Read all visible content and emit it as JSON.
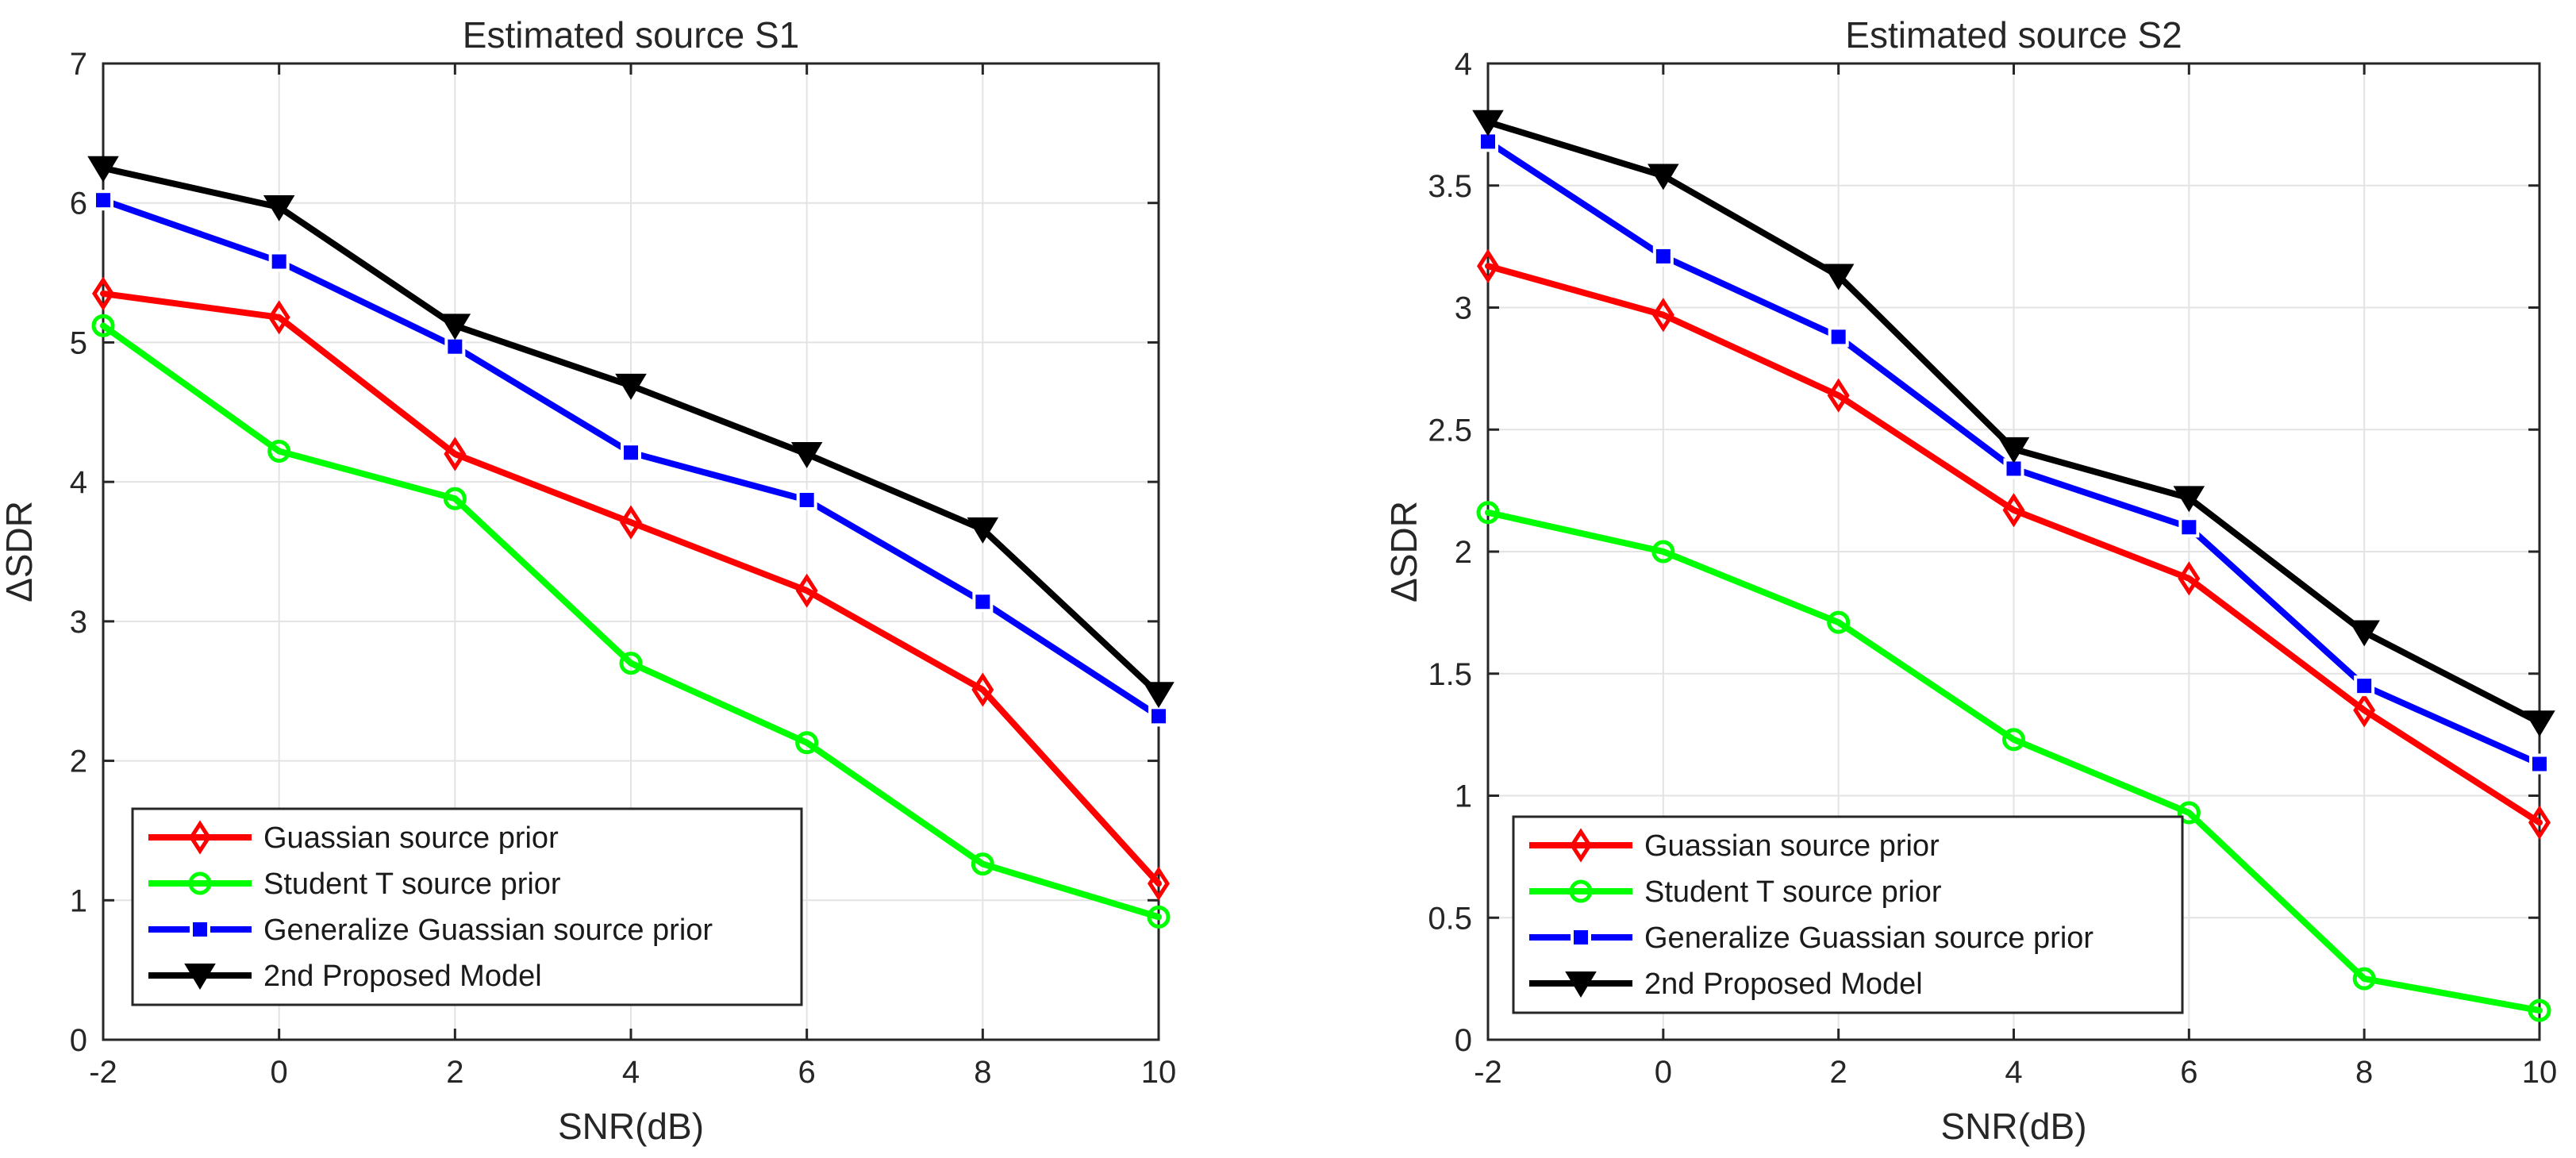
{
  "chart_data": [
    {
      "type": "line",
      "title": "Estimated source S1",
      "xlabel": "SNR(dB)",
      "ylabel": "ΔSDR",
      "x": [
        -2,
        0,
        2,
        4,
        6,
        8,
        10
      ],
      "xlim": [
        -2,
        10
      ],
      "ylim": [
        0,
        7
      ],
      "xticks": [
        -2,
        0,
        2,
        4,
        6,
        8,
        10
      ],
      "yticks": [
        0,
        1,
        2,
        3,
        4,
        5,
        6,
        7
      ],
      "grid": true,
      "legend_position": "bottom-left",
      "series": [
        {
          "name": "Guassian source prior",
          "color": "#ff0000",
          "marker": "diamond",
          "values": [
            5.35,
            5.18,
            4.2,
            3.71,
            3.22,
            2.51,
            1.12
          ]
        },
        {
          "name": "Student T source prior",
          "color": "#00ff00",
          "marker": "circle",
          "values": [
            5.12,
            4.22,
            3.88,
            2.7,
            2.13,
            1.26,
            0.88
          ]
        },
        {
          "name": "Generalize Guassian source prior",
          "color": "#0000ff",
          "marker": "square",
          "values": [
            6.02,
            5.58,
            4.97,
            4.21,
            3.87,
            3.14,
            2.32
          ]
        },
        {
          "name": "2nd Proposed Model",
          "color": "#000000",
          "marker": "triangle-down",
          "values": [
            6.25,
            5.97,
            5.12,
            4.69,
            4.2,
            3.66,
            2.48
          ]
        }
      ]
    },
    {
      "type": "line",
      "title": "Estimated source S2",
      "xlabel": "SNR(dB)",
      "ylabel": "ΔSDR",
      "x": [
        -2,
        0,
        2,
        4,
        6,
        8,
        10
      ],
      "xlim": [
        -2,
        10
      ],
      "ylim": [
        0,
        4
      ],
      "xticks": [
        -2,
        0,
        2,
        4,
        6,
        8,
        10
      ],
      "yticks": [
        0,
        0.5,
        1,
        1.5,
        2,
        2.5,
        3,
        3.5,
        4
      ],
      "grid": true,
      "legend_position": "bottom-left",
      "series": [
        {
          "name": "Guassian source prior",
          "color": "#ff0000",
          "marker": "diamond",
          "values": [
            3.17,
            2.97,
            2.64,
            2.17,
            1.89,
            1.35,
            0.89
          ]
        },
        {
          "name": "Student T source prior",
          "color": "#00ff00",
          "marker": "circle",
          "values": [
            2.16,
            2.0,
            1.71,
            1.23,
            0.93,
            0.25,
            0.12
          ]
        },
        {
          "name": "Generalize Guassian source prior",
          "color": "#0000ff",
          "marker": "square",
          "values": [
            3.68,
            3.21,
            2.88,
            2.34,
            2.1,
            1.45,
            1.13
          ]
        },
        {
          "name": "2nd Proposed Model",
          "color": "#000000",
          "marker": "triangle-down",
          "values": [
            3.76,
            3.54,
            3.13,
            2.42,
            2.22,
            1.67,
            1.3
          ]
        }
      ]
    }
  ]
}
